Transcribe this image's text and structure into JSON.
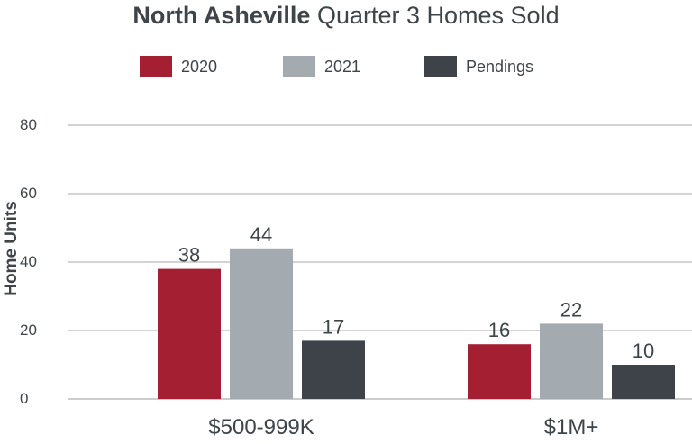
{
  "chart_data": {
    "type": "bar",
    "title_bold": "North Asheville",
    "title_rest": "Quarter 3 Homes Sold",
    "ylabel": "Home Units",
    "xlabel": "",
    "ylim": [
      0,
      80
    ],
    "yticks": [
      0,
      20,
      40,
      60,
      80
    ],
    "grid": true,
    "legend_position": "top-center",
    "categories": [
      "$500-999K",
      "$1M+"
    ],
    "series": [
      {
        "name": "2020",
        "color": "#a51f33",
        "values": [
          38,
          16
        ]
      },
      {
        "name": "2021",
        "color": "#a3abb1",
        "values": [
          44,
          22
        ]
      },
      {
        "name": "Pendings",
        "color": "#3d4349",
        "values": [
          17,
          10
        ]
      }
    ]
  }
}
